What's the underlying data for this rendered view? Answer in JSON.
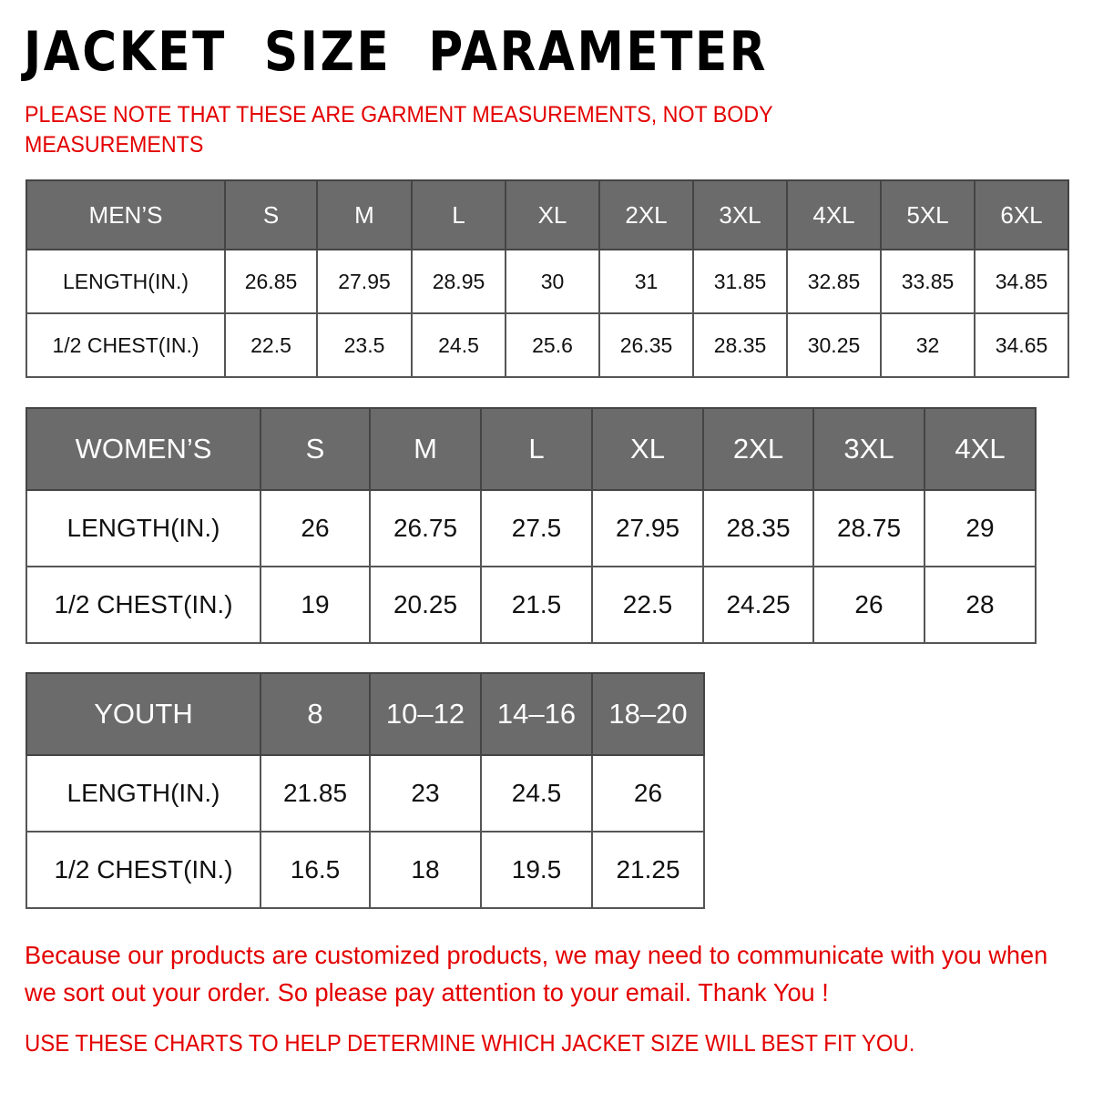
{
  "title": "JACKET  SIZE  PARAMETER",
  "note": "PLEASE NOTE THAT THESE ARE GARMENT MEASUREMENTS, NOT BODY MEASUREMENTS",
  "tables": {
    "men": {
      "header": [
        "MEN’S",
        "S",
        "M",
        "L",
        "XL",
        "2XL",
        "3XL",
        "4XL",
        "5XL",
        "6XL"
      ],
      "rows": [
        [
          "LENGTH(IN.)",
          "26.85",
          "27.95",
          "28.95",
          "30",
          "31",
          "31.85",
          "32.85",
          "33.85",
          "34.85"
        ],
        [
          "1/2 CHEST(IN.)",
          "22.5",
          "23.5",
          "24.5",
          "25.6",
          "26.35",
          "28.35",
          "30.25",
          "32",
          "34.65"
        ]
      ]
    },
    "women": {
      "header": [
        "WOMEN’S",
        "S",
        "M",
        "L",
        "XL",
        "2XL",
        "3XL",
        "4XL"
      ],
      "rows": [
        [
          "LENGTH(IN.)",
          "26",
          "26.75",
          "27.5",
          "27.95",
          "28.35",
          "28.75",
          "29"
        ],
        [
          "1/2 CHEST(IN.)",
          "19",
          "20.25",
          "21.5",
          "22.5",
          "24.25",
          "26",
          "28"
        ]
      ]
    },
    "youth": {
      "header": [
        "YOUTH",
        "8",
        "10–12",
        "14–16",
        "18–20"
      ],
      "rows": [
        [
          "LENGTH(IN.)",
          "21.85",
          "23",
          "24.5",
          "26"
        ],
        [
          "1/2 CHEST(IN.)",
          "16.5",
          "18",
          "19.5",
          "21.25"
        ]
      ]
    }
  },
  "footer": {
    "message": "Because our products are customized products, we may need to communicate with you when we sort out your order. So please pay attention to your email. Thank You !",
    "advice": "USE THESE CHARTS TO HELP DETERMINE WHICH JACKET SIZE WILL BEST FIT YOU."
  },
  "colors": {
    "header_bg": "#6b6b6b",
    "accent_red": "#e30000"
  }
}
